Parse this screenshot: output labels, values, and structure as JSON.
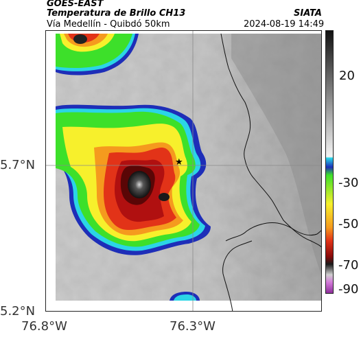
{
  "header": {
    "satellite": "GOES-EAST",
    "product": "Temperatura de Brillo CH13",
    "source": "SIATA",
    "route": "Vía Medellín - Quibdó 50km",
    "datetime": "2024-08-19 14:49"
  },
  "map": {
    "lat_ticks": [
      "5.7°N",
      "5.2°N"
    ],
    "lon_ticks": [
      "76.8°W",
      "76.3°W"
    ],
    "marker": "★",
    "colors": {
      "cold_black": "#111111",
      "deep_red": "#b01010",
      "red": "#e23318",
      "orange": "#f59a1e",
      "yellow": "#f7f02c",
      "green": "#3de02a",
      "cyan": "#2bd5e6",
      "blue": "#1e2eb8",
      "warm_gray": "#c8c8c8"
    }
  },
  "colorbar": {
    "labels": [
      "20",
      "-30",
      "-50",
      "-70",
      "-90"
    ]
  }
}
